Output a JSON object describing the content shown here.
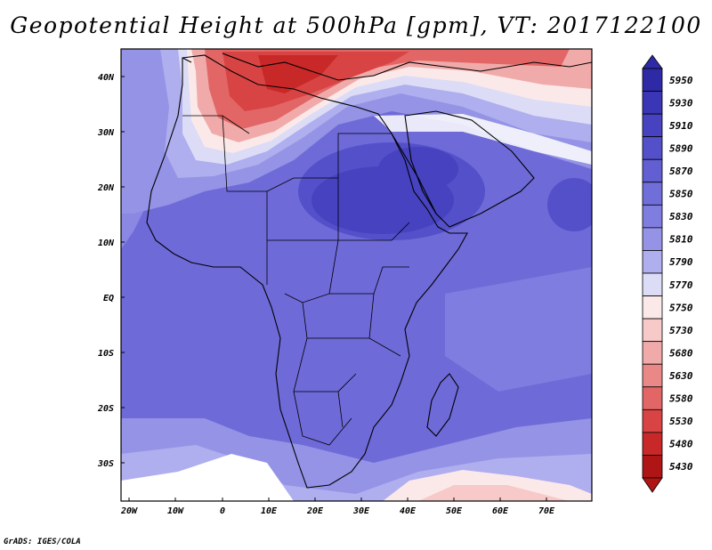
{
  "title": "Geopotential Height at 500hPa [gpm], VT: 2017122100",
  "credit": "GrADS: IGES/COLA",
  "map": {
    "variable": "Geopotential Height at 500hPa",
    "units": "gpm",
    "lon_labels": [
      "20W",
      "10W",
      "0",
      "10E",
      "20E",
      "30E",
      "40E",
      "50E",
      "60E",
      "70E"
    ],
    "lat_labels": [
      "40N",
      "30N",
      "20N",
      "10N",
      "EQ",
      "10S",
      "20S",
      "30S"
    ]
  },
  "colorbar": {
    "levels": [
      "5950",
      "5930",
      "5910",
      "5890",
      "5870",
      "5850",
      "5830",
      "5810",
      "5790",
      "5770",
      "5750",
      "5730",
      "5680",
      "5630",
      "5580",
      "5530",
      "5480",
      "5430"
    ],
    "colors": [
      "#2e2aa6",
      "#3a36b5",
      "#4642c0",
      "#5450ca",
      "#625fd2",
      "#706ed9",
      "#7f7ddf",
      "#9493e6",
      "#afaeee",
      "#dcdcf7",
      "#fbe9e9",
      "#f7c9c9",
      "#f1aaaa",
      "#ea8888",
      "#e26666",
      "#d84444",
      "#c92828",
      "#b01515"
    ]
  },
  "colors": {
    "north_warm": "#d95050",
    "ocean_base": "#6e6ad8",
    "subtropical_high": "#4642c0",
    "boundary": "#000000"
  }
}
